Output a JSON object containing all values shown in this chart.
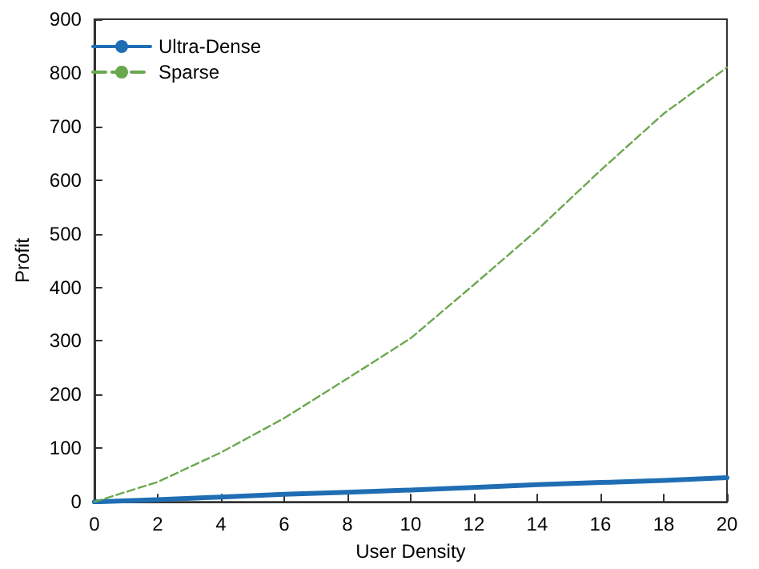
{
  "chart_data": {
    "type": "line",
    "xlabel": "User Density",
    "ylabel": "Profit",
    "x": [
      0,
      2,
      4,
      6,
      8,
      10,
      12,
      14,
      16,
      18,
      20
    ],
    "series": [
      {
        "name": "Ultra-Dense",
        "color": "#1f6eb4",
        "line_style": "solid",
        "values": [
          0,
          4,
          9,
          14,
          18,
          22,
          27,
          32,
          36,
          40,
          45
        ]
      },
      {
        "name": "Sparse",
        "color": "#6aa84f",
        "line_style": "dashed",
        "values": [
          0,
          37,
          92,
          156,
          230,
          305,
          405,
          507,
          618,
          724,
          810
        ]
      }
    ],
    "xlim": [
      0,
      20
    ],
    "xticks": [
      0,
      2,
      4,
      6,
      8,
      10,
      12,
      14,
      16,
      18,
      20
    ],
    "ylim": [
      0,
      900
    ],
    "yticks": [
      0,
      100,
      200,
      300,
      400,
      500,
      600,
      700,
      800,
      900
    ],
    "grid": false,
    "legend": "top left",
    "marker": "none"
  }
}
